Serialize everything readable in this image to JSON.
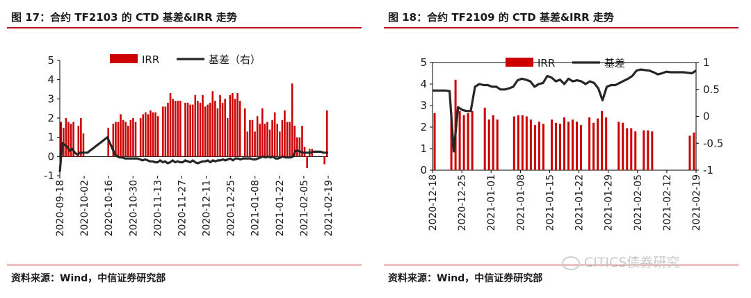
{
  "left": {
    "title": "图 17：合约 TF2103 的 CTD 基差&IRR 走势",
    "source": "资料来源：Wind，中信证券研究部"
  },
  "right": {
    "title": "图 18：合约 TF2109 的 CTD 基差&IRR 走势",
    "source": "资料来源：Wind，中信证券研究部"
  },
  "watermark": "CITICS债券研究",
  "colors": {
    "bar": "#cc0000",
    "line": "#262626",
    "rule": "#b5121b"
  },
  "chart_data": [
    {
      "type": "bar",
      "legend": [
        "IRR",
        "基差（右）"
      ],
      "legend_position": "top-center",
      "grid": false,
      "x_tick_labels": [
        "2020-09-18",
        "2020-10-02",
        "2020-10-16",
        "2020-10-30",
        "2020-11-13",
        "2020-11-27",
        "2020-12-11",
        "2020-12-25",
        "2021-01-08",
        "2021-01-22",
        "2021-02-05",
        "2021-02-19"
      ],
      "y_ticks": [
        -1,
        0,
        1,
        2,
        3,
        4,
        5
      ],
      "ylim": [
        -1,
        5
      ],
      "y2lim": [
        -1,
        5
      ],
      "series": [
        {
          "name": "IRR",
          "kind": "bar",
          "axis": "left",
          "values": [
            1.8,
            1.5,
            2.0,
            1.8,
            1.7,
            1.8,
            null,
            1.6,
            2.0,
            1.2,
            null,
            null,
            null,
            null,
            null,
            null,
            null,
            null,
            null,
            1.5,
            null,
            1.7,
            1.8,
            1.8,
            2.2,
            1.9,
            1.8,
            1.6,
            1.9,
            2.0,
            1.8,
            null,
            2.0,
            2.2,
            2.3,
            2.2,
            2.4,
            2.3,
            2.3,
            2.1,
            null,
            2.6,
            2.6,
            2.8,
            3.3,
            3.0,
            2.9,
            2.9,
            2.9,
            null,
            2.8,
            2.8,
            2.7,
            2.7,
            3.2,
            2.9,
            2.8,
            3.2,
            2.6,
            2.7,
            2.8,
            3.4,
            2.9,
            2.5,
            3.2,
            2.8,
            3.0,
            2.0,
            3.2,
            3.3,
            3.0,
            3.3,
            2.9,
            null,
            2.5,
            1.3,
            1.9,
            1.9,
            1.3,
            2.1,
            1.7,
            2.5,
            1.7,
            1.8,
            1.4,
            1.9,
            2.3,
            1.7,
            1.3,
            1.9,
            2.4,
            1.8,
            1.8,
            3.8,
            1.6,
            1.0,
            1.0,
            1.6,
            0.5,
            -0.6,
            0.4,
            0.4,
            null,
            null,
            null,
            null,
            -0.4,
            2.4
          ]
        },
        {
          "name": "基差（右）",
          "kind": "line",
          "axis": "right",
          "values": [
            -0.8,
            0.7,
            0.6,
            0.5,
            0.3,
            0.4,
            0.2,
            0.1,
            0.2,
            0.2,
            0.2,
            0.2,
            0.3,
            0.4,
            0.5,
            0.6,
            0.7,
            0.8,
            0.9,
            1.0,
            0.7,
            0.4,
            0.1,
            0.0,
            -0.05,
            -0.05,
            -0.1,
            -0.1,
            -0.1,
            -0.1,
            -0.1,
            -0.1,
            -0.15,
            -0.2,
            -0.15,
            -0.2,
            -0.25,
            -0.25,
            -0.3,
            -0.3,
            -0.2,
            -0.3,
            -0.25,
            -0.35,
            -0.3,
            -0.2,
            -0.3,
            -0.25,
            -0.3,
            -0.3,
            -0.2,
            -0.25,
            -0.3,
            -0.2,
            -0.3,
            -0.35,
            -0.3,
            -0.25,
            -0.25,
            -0.2,
            -0.3,
            -0.2,
            -0.25,
            -0.2,
            -0.2,
            -0.15,
            -0.2,
            -0.15,
            -0.1,
            -0.2,
            -0.1,
            -0.1,
            -0.15,
            -0.1,
            -0.1,
            -0.1,
            -0.1,
            -0.15,
            -0.15,
            -0.1,
            -0.05,
            0.0,
            -0.05,
            0.0,
            -0.05,
            0.0,
            -0.1,
            -0.1,
            -0.05,
            0.0,
            -0.05,
            -0.05,
            -0.05,
            0.0,
            0.3,
            0.3,
            0.25,
            0.2,
            0.2,
            0.2,
            0.2,
            0.25,
            0.25,
            0.25,
            0.25,
            0.2,
            0.2,
            0.2
          ]
        }
      ]
    },
    {
      "type": "bar",
      "legend": [
        "IRR",
        "基差"
      ],
      "legend_position": "top-center",
      "grid": false,
      "x_tick_labels": [
        "2020-12-18",
        "2020-12-25",
        "2021-01-01",
        "2021-01-08",
        "2021-01-15",
        "2021-01-22",
        "2021-01-29",
        "2021-02-05",
        "2021-02-12",
        "2021-02-19"
      ],
      "y_ticks": [
        0,
        1,
        2,
        3,
        4,
        5
      ],
      "y2_ticks": [
        -1,
        -0.5,
        0,
        0.5,
        1
      ],
      "ylim": [
        0,
        5
      ],
      "y2lim": [
        -1,
        1
      ],
      "series": [
        {
          "name": "IRR",
          "kind": "bar",
          "axis": "left",
          "values": [
            2.65,
            null,
            null,
            null,
            2.65,
            4.2,
            2.75,
            2.55,
            2.65,
            2.75,
            null,
            null,
            2.9,
            2.35,
            2.55,
            2.35,
            null,
            null,
            null,
            2.5,
            2.55,
            2.55,
            2.5,
            2.35,
            2.1,
            2.25,
            2.15,
            null,
            2.35,
            2.2,
            2.15,
            2.45,
            2.25,
            2.35,
            2.25,
            2.1,
            null,
            2.45,
            2.2,
            2.4,
            2.75,
            2.45,
            null,
            null,
            2.25,
            2.2,
            1.95,
            1.95,
            1.8,
            null,
            1.85,
            1.85,
            1.8,
            null,
            null,
            null,
            null,
            null,
            null,
            null,
            null,
            1.6,
            1.75
          ]
        },
        {
          "name": "基差",
          "kind": "line",
          "axis": "right",
          "values": [
            0.48,
            0.48,
            0.48,
            0.48,
            0.47,
            -0.65,
            0.17,
            0.12,
            0.1,
            0.1,
            0.55,
            0.6,
            0.58,
            0.58,
            0.55,
            0.55,
            0.5,
            0.5,
            0.52,
            0.55,
            0.67,
            0.7,
            0.68,
            0.65,
            0.55,
            0.6,
            0.62,
            0.75,
            0.72,
            0.65,
            0.68,
            0.6,
            0.7,
            0.65,
            0.67,
            0.65,
            0.6,
            0.65,
            0.62,
            0.52,
            0.3,
            0.55,
            0.58,
            0.58,
            0.62,
            0.66,
            0.7,
            0.75,
            0.85,
            0.87,
            0.86,
            0.85,
            0.82,
            0.78,
            0.8,
            0.83,
            0.82,
            0.82,
            0.82,
            0.82,
            0.81,
            0.8,
            0.85
          ]
        }
      ]
    }
  ]
}
